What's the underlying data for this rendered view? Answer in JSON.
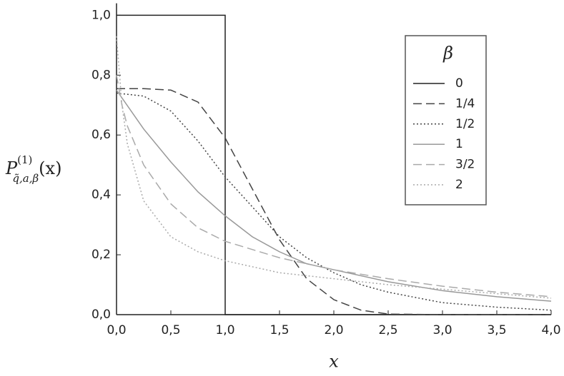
{
  "chart_data": {
    "type": "line",
    "x_label": "x",
    "y_label": {
      "base": "P",
      "superscript": "(1)",
      "subscript": "q̃,a,β",
      "argument": "(x)"
    },
    "legend_title": "β",
    "legend_position": "upper right",
    "xlim": [
      0,
      4
    ],
    "ylim": [
      0,
      1.04
    ],
    "xticks": [
      {
        "value": 0,
        "label": "0,0"
      },
      {
        "value": 0.5,
        "label": "0,5"
      },
      {
        "value": 1,
        "label": "1,0"
      },
      {
        "value": 1.5,
        "label": "1,5"
      },
      {
        "value": 2,
        "label": "2,0"
      },
      {
        "value": 2.5,
        "label": "2,5"
      },
      {
        "value": 3,
        "label": "3,0"
      },
      {
        "value": 3.5,
        "label": "3,5"
      },
      {
        "value": 4,
        "label": "4,0"
      }
    ],
    "yticks": [
      {
        "value": 0,
        "label": "0,0"
      },
      {
        "value": 0.2,
        "label": "0,2"
      },
      {
        "value": 0.4,
        "label": "0,4"
      },
      {
        "value": 0.6,
        "label": "0,6"
      },
      {
        "value": 0.8,
        "label": "0,8"
      },
      {
        "value": 1,
        "label": "1,0"
      }
    ],
    "series": [
      {
        "name": "0",
        "color": "#222222",
        "dash": "solid",
        "x": [
          0,
          1,
          1,
          4
        ],
        "values": [
          1,
          1,
          0,
          0
        ]
      },
      {
        "name": "1/4",
        "color": "#444444",
        "dash": "dashed",
        "x": [
          0,
          0.25,
          0.5,
          0.75,
          1,
          1.25,
          1.5,
          1.75,
          2,
          2.25,
          2.5,
          3,
          3.5,
          4
        ],
        "values": [
          0.755,
          0.755,
          0.75,
          0.71,
          0.59,
          0.42,
          0.25,
          0.12,
          0.05,
          0.015,
          0.002,
          0,
          0,
          0
        ]
      },
      {
        "name": "1/2",
        "color": "#444444",
        "dash": "dotted",
        "x": [
          0,
          0.25,
          0.5,
          0.75,
          1,
          1.25,
          1.5,
          1.75,
          2,
          2.25,
          2.5,
          3,
          3.5,
          4
        ],
        "values": [
          0.74,
          0.73,
          0.68,
          0.58,
          0.46,
          0.36,
          0.26,
          0.19,
          0.14,
          0.1,
          0.075,
          0.04,
          0.025,
          0.015
        ]
      },
      {
        "name": "1",
        "color": "#999999",
        "dash": "solid",
        "x": [
          0,
          0.25,
          0.5,
          0.75,
          1,
          1.25,
          1.5,
          1.75,
          2,
          2.5,
          3,
          3.5,
          4
        ],
        "values": [
          0.75,
          0.62,
          0.51,
          0.41,
          0.33,
          0.26,
          0.21,
          0.17,
          0.15,
          0.11,
          0.08,
          0.06,
          0.045
        ]
      },
      {
        "name": "3/2",
        "color": "#aaaaaa",
        "dash": "dashed",
        "x": [
          0,
          0.05,
          0.1,
          0.25,
          0.5,
          0.75,
          1,
          1.5,
          2,
          2.5,
          3,
          3.5,
          4
        ],
        "values": [
          0.8,
          0.7,
          0.63,
          0.5,
          0.37,
          0.29,
          0.245,
          0.19,
          0.15,
          0.12,
          0.095,
          0.075,
          0.06
        ]
      },
      {
        "name": "2",
        "color": "#aaaaaa",
        "dash": "dotted",
        "x": [
          0,
          0.05,
          0.1,
          0.25,
          0.5,
          0.75,
          1,
          1.5,
          2,
          2.5,
          3,
          3.5,
          4
        ],
        "values": [
          0.93,
          0.7,
          0.57,
          0.38,
          0.26,
          0.21,
          0.18,
          0.14,
          0.12,
          0.1,
          0.085,
          0.07,
          0.055
        ]
      }
    ]
  }
}
